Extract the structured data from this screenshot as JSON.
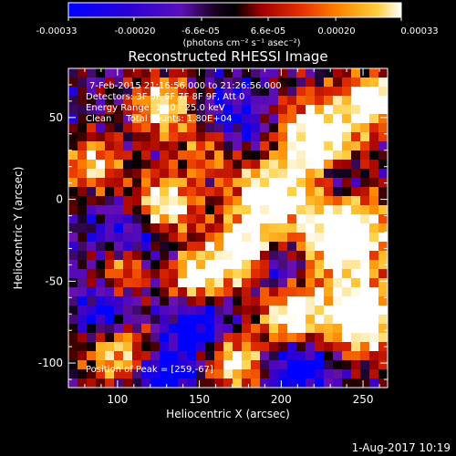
{
  "colorbar": {
    "ticks": [
      "-0.00033",
      "-0.00020",
      "-6.6e-05",
      "6.6e-05",
      "0.00020",
      "0.00033"
    ],
    "tick_values": [
      -0.00033,
      -0.0002,
      -6.6e-05,
      6.6e-05,
      0.0002,
      0.00033
    ],
    "range": [
      -0.00033,
      0.00033
    ],
    "unit_label": "(photons cm⁻² s⁻¹ asec⁻²)"
  },
  "chart_data": {
    "type": "heatmap",
    "title": "Reconstructed RHESSI Image",
    "xlabel": "Heliocentric X (arcsec)",
    "ylabel": "Heliocentric Y (arcsec)",
    "xlim": [
      70,
      265
    ],
    "ylim": [
      -115,
      80
    ],
    "xticks": [
      100,
      150,
      200,
      250
    ],
    "yticks": [
      -100,
      -50,
      0,
      50
    ],
    "grid": false,
    "annotations": [
      "7-Feb-2015 21:16:56.000 to 21:26:56.000",
      "Detectors: 3F 5F 6F 7F 8F 9F, Att 0",
      "Energy Range: 12.0 - 25.0 keV",
      "Clean     Total counts: 1.80E+04"
    ],
    "peak_label": "Position of Peak = [259,-67]",
    "peak": [
      259,
      -67
    ],
    "total_counts": 18000,
    "energy_range_kev": [
      12.0,
      25.0
    ],
    "colormap": [
      "#0000ff",
      "#3a00c8",
      "#6a10b0",
      "#000000",
      "#a00000",
      "#e83000",
      "#ff8a00",
      "#ffd040",
      "#ffffff"
    ]
  },
  "footer": {
    "date": "1-Aug-2017 10:19"
  }
}
